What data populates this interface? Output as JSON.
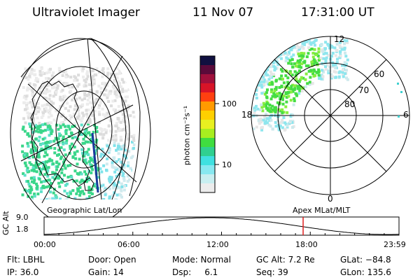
{
  "header": {
    "instrument": "Ultraviolet Imager",
    "date": "11 Nov 07",
    "time": "17:31:00 UT"
  },
  "left_panel": {
    "label": "Geographic Lat/Lon"
  },
  "right_panel": {
    "label": "Apex MLat/MLT",
    "mlt_labels": [
      "12",
      "18",
      "6",
      "0"
    ],
    "lat_labels": [
      "60",
      "70",
      "80"
    ]
  },
  "colorbar": {
    "unit_label": "photon cm⁻²s⁻¹",
    "ticks": [
      "100",
      "10"
    ],
    "colors": [
      "#101040",
      "#5a0a3a",
      "#a0103c",
      "#d81428",
      "#ff4010",
      "#ff9a00",
      "#ffd000",
      "#e8f020",
      "#a8ee20",
      "#40dd40",
      "#30d090",
      "#40e0e0",
      "#88e8f0",
      "#c8eef0",
      "#ececec"
    ]
  },
  "timeline": {
    "ylabel": "GC Alt",
    "y_ticks": [
      "9.0",
      "1.8"
    ],
    "x_ticks": [
      "00:00",
      "06:00",
      "12:00",
      "18:00",
      "23:59"
    ],
    "current_time": "17:31",
    "marker_color": "#e02020"
  },
  "status": {
    "row1": {
      "flt": "Flt: LBHL",
      "door": "Door: Open",
      "mode": "Mode: Normal",
      "gcalt": "GC Alt: 7.2 Re",
      "glat": "GLat: −84.8"
    },
    "row2": {
      "ip": "IP: 36.0",
      "gain": "Gain: 14",
      "dsp": "Dsp:     6.1",
      "seq": "Seq: 39",
      "glon": "GLon: 135.6"
    }
  }
}
